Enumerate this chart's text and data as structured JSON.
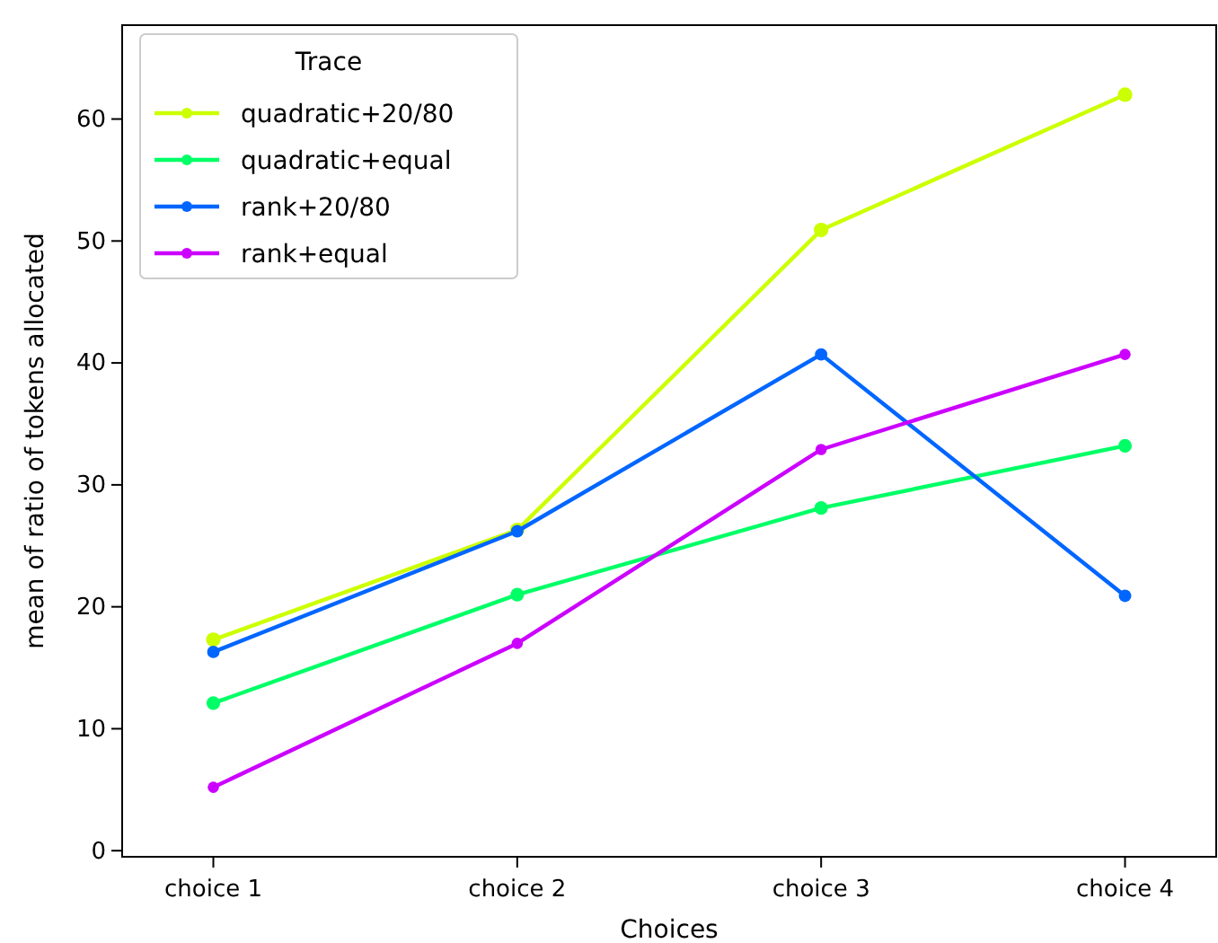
{
  "chart_data": {
    "type": "line",
    "xlabel": "Choices",
    "ylabel": "mean of ratio of tokens allocated",
    "legend_title": "Trace",
    "legend": "top left",
    "marker": "circle",
    "line_style": "solid",
    "grid": false,
    "categories": [
      "choice 1",
      "choice 2",
      "choice 3",
      "choice 4"
    ],
    "ylim": [
      -0.5,
      67.7
    ],
    "yticks": [
      0,
      10,
      20,
      30,
      40,
      50,
      60
    ],
    "series": [
      {
        "name": "quadratic+20/80",
        "color": "#ccff00",
        "values": [
          17.3,
          26.3,
          50.9,
          62.0
        ]
      },
      {
        "name": "quadratic+equal",
        "color": "#00ff66",
        "values": [
          12.1,
          21.0,
          28.1,
          33.2
        ]
      },
      {
        "name": "rank+20/80",
        "color": "#0066ff",
        "values": [
          16.3,
          26.2,
          40.7,
          20.9
        ]
      },
      {
        "name": "rank+equal",
        "color": "#cc00ff",
        "values": [
          5.2,
          17.0,
          32.9,
          40.7
        ]
      }
    ]
  }
}
